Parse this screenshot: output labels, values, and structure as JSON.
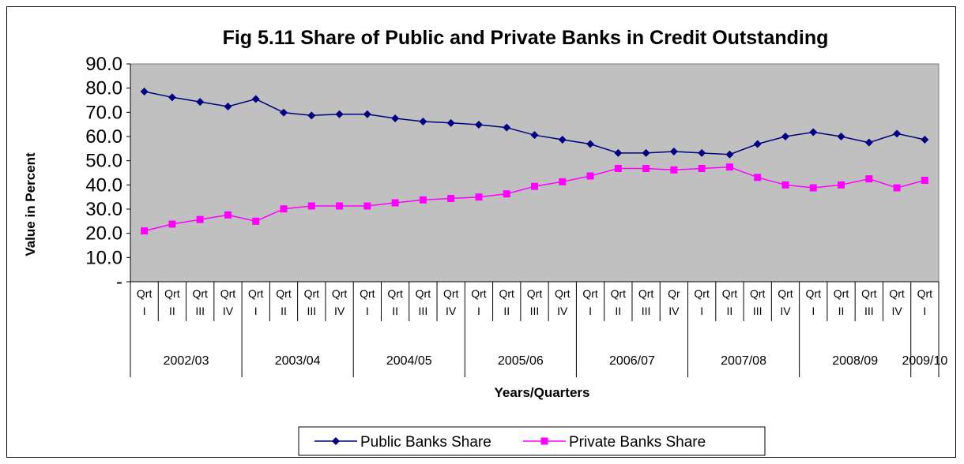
{
  "chart_data": {
    "type": "line",
    "title": "Fig 5.11 Share of Public and Private Banks in Credit Outstanding",
    "xlabel": "Years/Quarters",
    "ylabel": "Value in Percent",
    "ylim": [
      0,
      90
    ],
    "y_ticks": [
      "-",
      "10.0",
      "20.0",
      "30.0",
      "40.0",
      "50.0",
      "60.0",
      "70.0",
      "80.0",
      "90.0"
    ],
    "grid": false,
    "plot_background": "#c0c0c0",
    "legend_position": "bottom",
    "categories": [
      [
        "Qrt",
        "I"
      ],
      [
        "Qrt",
        "II"
      ],
      [
        "Qrt",
        "III"
      ],
      [
        "Qrt",
        "IV"
      ],
      [
        "Qrt",
        "I"
      ],
      [
        "Qrt",
        "II"
      ],
      [
        "Qrt",
        "III"
      ],
      [
        "Qrt",
        "IV"
      ],
      [
        "Qrt",
        "I"
      ],
      [
        "Qrt",
        "II"
      ],
      [
        "Qrt",
        "III"
      ],
      [
        "Qrt",
        "IV"
      ],
      [
        "Qrt",
        "I"
      ],
      [
        "Qrt",
        "II"
      ],
      [
        "Qrt",
        "III"
      ],
      [
        "Qrt",
        "IV"
      ],
      [
        "Qrt",
        "I"
      ],
      [
        "Qrt",
        "II"
      ],
      [
        "Qrt",
        "III"
      ],
      [
        "Qr",
        "IV"
      ],
      [
        "Qrt",
        "I"
      ],
      [
        "Qrt",
        "II"
      ],
      [
        "Qrt",
        "III"
      ],
      [
        "Qrt",
        "IV"
      ],
      [
        "Qrt",
        "I"
      ],
      [
        "Qrt",
        "II"
      ],
      [
        "Qrt",
        "III"
      ],
      [
        "Qrt",
        "IV"
      ],
      [
        "Qrt",
        "I"
      ]
    ],
    "groups": [
      {
        "label": "2002/03",
        "count": 4
      },
      {
        "label": "2003/04",
        "count": 4
      },
      {
        "label": "2004/05",
        "count": 4
      },
      {
        "label": "2005/06",
        "count": 4
      },
      {
        "label": "2006/07",
        "count": 4
      },
      {
        "label": "2007/08",
        "count": 4
      },
      {
        "label": "2008/09",
        "count": 4
      },
      {
        "label": "2009/10",
        "count": 1
      }
    ],
    "series": [
      {
        "name": "Public Banks Share",
        "color": "#000080",
        "marker": "diamond",
        "values": [
          78.6,
          76.2,
          74.3,
          72.4,
          75.5,
          69.9,
          68.7,
          69.2,
          69.2,
          67.5,
          66.2,
          65.6,
          64.9,
          63.7,
          60.6,
          58.7,
          56.9,
          53.2,
          53.2,
          53.8,
          53.2,
          52.6,
          56.9,
          60.0,
          61.8,
          60.0,
          57.5,
          61.2,
          58.7
        ]
      },
      {
        "name": "Private Banks Share",
        "color": "#ff00ff",
        "marker": "square",
        "values": [
          21.0,
          23.8,
          25.7,
          27.6,
          25.0,
          30.1,
          31.3,
          31.3,
          31.3,
          32.6,
          33.8,
          34.4,
          35.0,
          36.3,
          39.4,
          41.3,
          43.7,
          46.8,
          46.8,
          46.2,
          46.8,
          47.4,
          43.1,
          40.0,
          38.8,
          40.0,
          42.5,
          38.8,
          41.9
        ]
      }
    ]
  }
}
